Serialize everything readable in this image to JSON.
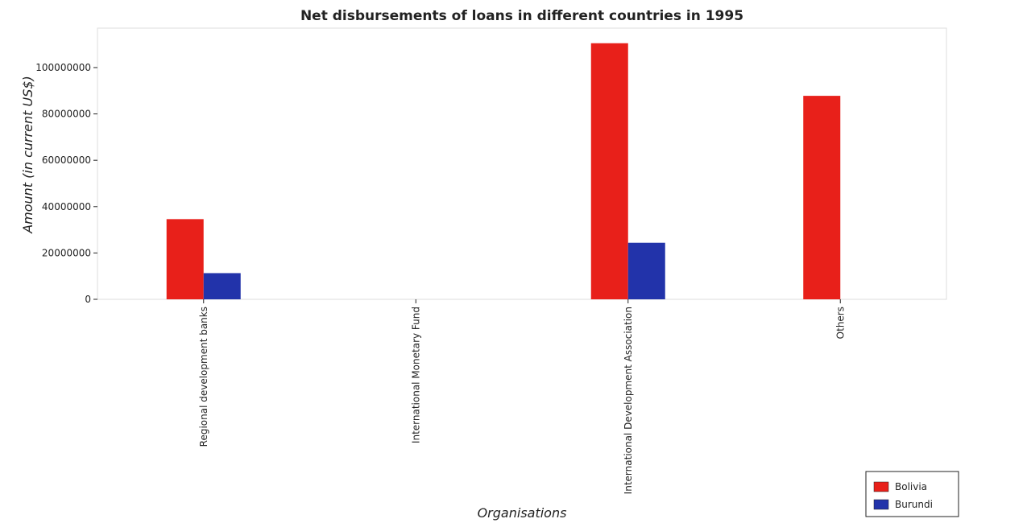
{
  "chart_data": {
    "type": "bar",
    "title": "Net disbursements of loans in different countries in 1995",
    "xlabel": "Organisations",
    "ylabel": "Amount (in current US$)",
    "categories": [
      "Regional development banks",
      "International Monetary Fund",
      "International Development Association",
      "Others"
    ],
    "series": [
      {
        "name": "Bolivia",
        "color": "#e8201a",
        "values": [
          34600000,
          0,
          110500000,
          87800000
        ]
      },
      {
        "name": "Burundi",
        "color": "#2233aa",
        "values": [
          11300000,
          0,
          24400000,
          0
        ]
      }
    ],
    "ylim": [
      0,
      117000000
    ],
    "yticks": [
      0,
      20000000,
      40000000,
      60000000,
      80000000,
      100000000
    ],
    "ytick_labels": [
      "0",
      "20000000",
      "40000000",
      "60000000",
      "80000000",
      "100000000"
    ],
    "grid": false,
    "legend_position": "bottom-right"
  }
}
